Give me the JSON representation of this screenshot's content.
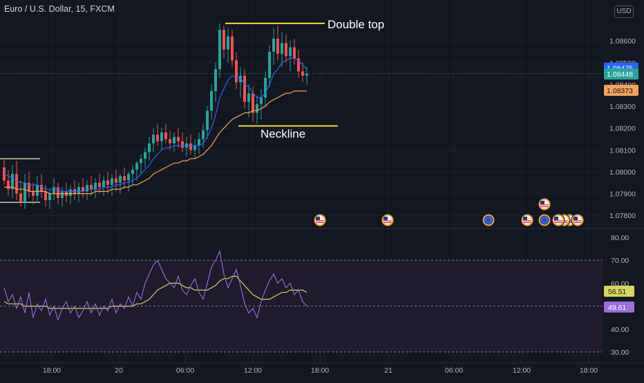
{
  "header": {
    "symbol": "Euro / U.S. Dollar, 15, FXCM",
    "currency": "USD"
  },
  "annotations": {
    "double_top": "Double top",
    "neckline": "Neckline"
  },
  "colors": {
    "background": "#131722",
    "up": "#26a69a",
    "down": "#ef5350",
    "ema_fast": "#2962ff",
    "ema_slow": "#f7a25a",
    "annotation": "#f5d742",
    "rsi": "#9c6ee0",
    "rsi_ma": "#d7d65a",
    "rsi_band": "#1f1a2e",
    "grid": "#1e222d",
    "axis_text": "#b2b5be"
  },
  "chart_data": [
    {
      "type": "candlestick",
      "panel": "price",
      "ylim": [
        1.0775,
        1.0873
      ],
      "y_ticks": [
        "1.08600",
        "1.08500",
        "1.08400",
        "1.08300",
        "1.08200",
        "1.08100",
        "1.08000",
        "1.07900",
        "1.07800"
      ],
      "x_ticks": [
        "18:00",
        "20",
        "06:00",
        "12:00",
        "18:00",
        "21",
        "06:00",
        "12:00",
        "18:00"
      ],
      "price_labels": [
        {
          "text": "1.08475",
          "color": "#2962ff"
        },
        {
          "text": "1.08448",
          "color": "#26a69a"
        },
        {
          "text": "1.08373",
          "color": "#f7a25a"
        }
      ],
      "levels": {
        "double_top": {
          "price": 1.0868
        },
        "neckline": {
          "price": 1.0821
        },
        "range_top": {
          "price": 1.0806
        },
        "range_bottom": {
          "price": 1.0786
        }
      },
      "event_markers": [
        {
          "icon": "us-flag-icon",
          "count": 1
        },
        {
          "icon": "us-flag-icon",
          "count": 1
        },
        {
          "icon": "eu-flag-icon",
          "count": 1
        },
        {
          "icon": "us-flag-icon",
          "count": 1
        },
        {
          "icon": "eu-flag-icon",
          "count": 1
        },
        {
          "icon": "us-flag-icon",
          "count": 3
        },
        {
          "icon": "us-flag-icon",
          "count": 1
        },
        {
          "icon": "us-flag-icon",
          "count": 1
        }
      ],
      "ohlc": [
        [
          1.0802,
          1.0806,
          1.0794,
          1.0796
        ],
        [
          1.0796,
          1.0801,
          1.0789,
          1.0792
        ],
        [
          1.0792,
          1.0803,
          1.0788,
          1.0799
        ],
        [
          1.0799,
          1.0805,
          1.0787,
          1.079
        ],
        [
          1.079,
          1.0796,
          1.0784,
          1.0786
        ],
        [
          1.0786,
          1.0799,
          1.0783,
          1.0795
        ],
        [
          1.0795,
          1.08,
          1.0788,
          1.0791
        ],
        [
          1.0791,
          1.0795,
          1.0785,
          1.0789
        ],
        [
          1.0789,
          1.0798,
          1.0786,
          1.0794
        ],
        [
          1.0794,
          1.0799,
          1.0788,
          1.0791
        ],
        [
          1.0791,
          1.0794,
          1.0784,
          1.0787
        ],
        [
          1.0787,
          1.0792,
          1.0783,
          1.079
        ],
        [
          1.079,
          1.0797,
          1.0787,
          1.0793
        ],
        [
          1.0793,
          1.0795,
          1.0785,
          1.0788
        ],
        [
          1.0788,
          1.0793,
          1.0784,
          1.0791
        ],
        [
          1.0791,
          1.0795,
          1.0786,
          1.0789
        ],
        [
          1.0789,
          1.0794,
          1.0785,
          1.0792
        ],
        [
          1.0792,
          1.0796,
          1.0787,
          1.079
        ],
        [
          1.079,
          1.0795,
          1.0786,
          1.0793
        ],
        [
          1.0793,
          1.0797,
          1.0788,
          1.0791
        ],
        [
          1.0791,
          1.0796,
          1.0787,
          1.0794
        ],
        [
          1.0794,
          1.0798,
          1.0789,
          1.0792
        ],
        [
          1.0792,
          1.0797,
          1.0788,
          1.0795
        ],
        [
          1.0795,
          1.0799,
          1.079,
          1.0793
        ],
        [
          1.0793,
          1.0798,
          1.0789,
          1.0796
        ],
        [
          1.0796,
          1.08,
          1.079,
          1.0794
        ],
        [
          1.0794,
          1.0799,
          1.0789,
          1.0797
        ],
        [
          1.0797,
          1.0801,
          1.0791,
          1.0795
        ],
        [
          1.0795,
          1.0799,
          1.079,
          1.0798
        ],
        [
          1.0798,
          1.0802,
          1.0792,
          1.0796
        ],
        [
          1.0796,
          1.08,
          1.0791,
          1.0799
        ],
        [
          1.0799,
          1.0803,
          1.0794,
          1.0801
        ],
        [
          1.0801,
          1.0805,
          1.0796,
          1.0804
        ],
        [
          1.0804,
          1.0808,
          1.0799,
          1.0806
        ],
        [
          1.0806,
          1.0811,
          1.0802,
          1.0809
        ],
        [
          1.0809,
          1.0816,
          1.0805,
          1.0813
        ],
        [
          1.0813,
          1.082,
          1.0809,
          1.0817
        ],
        [
          1.0817,
          1.0822,
          1.0812,
          1.0814
        ],
        [
          1.0814,
          1.082,
          1.081,
          1.0818
        ],
        [
          1.0818,
          1.0822,
          1.0813,
          1.0815
        ],
        [
          1.0815,
          1.0819,
          1.081,
          1.0813
        ],
        [
          1.0813,
          1.0818,
          1.0809,
          1.0816
        ],
        [
          1.0816,
          1.082,
          1.0811,
          1.0814
        ],
        [
          1.0814,
          1.0818,
          1.0809,
          1.0811
        ],
        [
          1.0811,
          1.0816,
          1.0807,
          1.0813
        ],
        [
          1.0813,
          1.0817,
          1.0808,
          1.081
        ],
        [
          1.081,
          1.0815,
          1.0806,
          1.0812
        ],
        [
          1.0812,
          1.0818,
          1.0808,
          1.0815
        ],
        [
          1.0815,
          1.0822,
          1.0811,
          1.0819
        ],
        [
          1.0819,
          1.083,
          1.0815,
          1.0828
        ],
        [
          1.0828,
          1.084,
          1.0824,
          1.0837
        ],
        [
          1.0837,
          1.085,
          1.0832,
          1.0847
        ],
        [
          1.0847,
          1.0868,
          1.0843,
          1.0865
        ],
        [
          1.0865,
          1.0867,
          1.0852,
          1.0856
        ],
        [
          1.0856,
          1.0866,
          1.085,
          1.0862
        ],
        [
          1.0862,
          1.0865,
          1.0848,
          1.0851
        ],
        [
          1.0851,
          1.0855,
          1.0838,
          1.0841
        ],
        [
          1.0841,
          1.0848,
          1.0834,
          1.0844
        ],
        [
          1.0844,
          1.0847,
          1.0829,
          1.0832
        ],
        [
          1.0832,
          1.084,
          1.0825,
          1.0836
        ],
        [
          1.0836,
          1.0839,
          1.0823,
          1.0827
        ],
        [
          1.0827,
          1.0835,
          1.0822,
          1.0831
        ],
        [
          1.0831,
          1.0838,
          1.0824,
          1.0834
        ],
        [
          1.0834,
          1.0846,
          1.083,
          1.0843
        ],
        [
          1.0843,
          1.0858,
          1.0839,
          1.0855
        ],
        [
          1.0855,
          1.0866,
          1.0849,
          1.0861
        ],
        [
          1.0861,
          1.0867,
          1.0851,
          1.0854
        ],
        [
          1.0854,
          1.0864,
          1.0848,
          1.0859
        ],
        [
          1.0859,
          1.0863,
          1.085,
          1.0853
        ],
        [
          1.0853,
          1.086,
          1.0846,
          1.0857
        ],
        [
          1.0857,
          1.0861,
          1.0849,
          1.0852
        ],
        [
          1.0852,
          1.0856,
          1.0843,
          1.0846
        ],
        [
          1.0846,
          1.085,
          1.0841,
          1.0844
        ],
        [
          1.0844,
          1.0848,
          1.084,
          1.0845
        ]
      ],
      "ema_fast": [
        1.0799,
        1.0798,
        1.0797,
        1.0796,
        1.0795,
        1.0795,
        1.0794,
        1.0794,
        1.0794,
        1.0793,
        1.0792,
        1.0792,
        1.0792,
        1.0792,
        1.0791,
        1.0791,
        1.0791,
        1.0791,
        1.0791,
        1.0791,
        1.0792,
        1.0792,
        1.0792,
        1.0792,
        1.0793,
        1.0793,
        1.0793,
        1.0794,
        1.0794,
        1.0795,
        1.0795,
        1.0796,
        1.0797,
        1.0799,
        1.0801,
        1.0803,
        1.0806,
        1.0808,
        1.081,
        1.0811,
        1.0811,
        1.0812,
        1.0812,
        1.0812,
        1.0812,
        1.0812,
        1.0812,
        1.0812,
        1.0813,
        1.0816,
        1.082,
        1.0826,
        1.0834,
        1.0838,
        1.0842,
        1.0844,
        1.0843,
        1.0843,
        1.084,
        1.0839,
        1.0836,
        1.0834,
        1.0834,
        1.0836,
        1.084,
        1.0845,
        1.0847,
        1.085,
        1.0851,
        1.0852,
        1.0852,
        1.0851,
        1.0849,
        1.0847
      ],
      "ema_slow": [
        1.0793,
        1.0793,
        1.0793,
        1.0792,
        1.0792,
        1.0792,
        1.0791,
        1.0791,
        1.0791,
        1.0791,
        1.0791,
        1.079,
        1.079,
        1.079,
        1.079,
        1.079,
        1.079,
        1.079,
        1.079,
        1.079,
        1.079,
        1.079,
        1.0791,
        1.0791,
        1.0791,
        1.0791,
        1.0792,
        1.0792,
        1.0792,
        1.0793,
        1.0793,
        1.0794,
        1.0794,
        1.0795,
        1.0796,
        1.0797,
        1.0799,
        1.08,
        1.0801,
        1.0802,
        1.0803,
        1.0804,
        1.0804,
        1.0805,
        1.0805,
        1.0806,
        1.0806,
        1.0807,
        1.0808,
        1.081,
        1.0812,
        1.0815,
        1.0818,
        1.082,
        1.0822,
        1.0824,
        1.0825,
        1.0826,
        1.0827,
        1.0827,
        1.0828,
        1.0828,
        1.0829,
        1.083,
        1.0832,
        1.0833,
        1.0834,
        1.0835,
        1.0836,
        1.0836,
        1.0837,
        1.0837,
        1.0837,
        1.0837
      ]
    },
    {
      "type": "line",
      "panel": "rsi",
      "ylim": [
        27,
        83
      ],
      "y_ticks": [
        "80.00",
        "70.00",
        "60.00",
        "50.00",
        "40.00",
        "30.00"
      ],
      "band": [
        30,
        70
      ],
      "midline": 50,
      "value_labels": [
        {
          "text": "56.51",
          "color": "#d7d65a"
        },
        {
          "text": "49.61",
          "color": "#9c6ee0"
        }
      ],
      "series": [
        {
          "values": [
            58,
            52,
            55,
            49,
            54,
            47,
            56,
            45,
            51,
            48,
            53,
            46,
            50,
            44,
            49,
            52,
            47,
            50,
            45,
            48,
            52,
            47,
            51,
            46,
            50,
            48,
            53,
            47,
            51,
            49,
            54,
            50,
            56,
            53,
            60,
            64,
            68,
            70,
            66,
            62,
            60,
            58,
            63,
            57,
            55,
            59,
            62,
            56,
            53,
            60,
            67,
            70,
            74,
            64,
            58,
            62,
            66,
            59,
            51,
            47,
            49,
            45,
            52,
            57,
            61,
            64,
            60,
            62,
            58,
            60,
            55,
            57,
            52,
            50
          ]
        },
        {
          "values": [
            52,
            51,
            51,
            51,
            51,
            50,
            50,
            50,
            50,
            50,
            50,
            49,
            49,
            49,
            49,
            49,
            49,
            49,
            49,
            49,
            49,
            49,
            49,
            49,
            49,
            49,
            50,
            50,
            50,
            50,
            50,
            50,
            51,
            51,
            52,
            53,
            55,
            57,
            58,
            59,
            60,
            60,
            60,
            59,
            58,
            58,
            57,
            57,
            57,
            57,
            58,
            59,
            61,
            62,
            62,
            63,
            63,
            61,
            59,
            57,
            55,
            54,
            53,
            53,
            53,
            54,
            55,
            56,
            56,
            57,
            57,
            57,
            57,
            56
          ]
        }
      ]
    }
  ]
}
